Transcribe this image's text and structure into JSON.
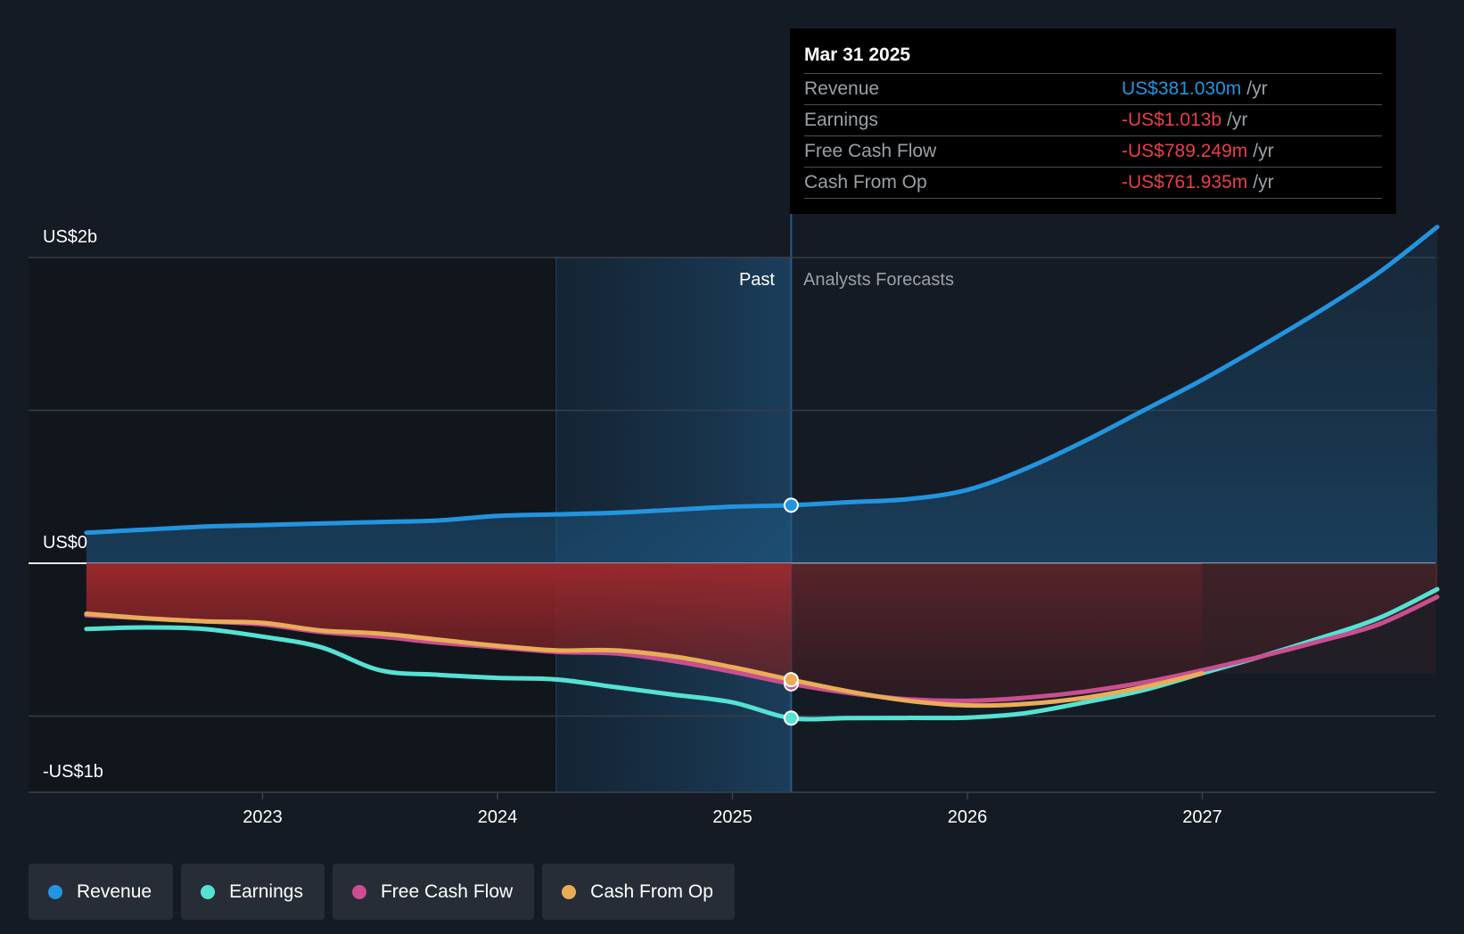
{
  "chart_data": {
    "type": "line",
    "x_ticks": [
      "2023",
      "2024",
      "2025",
      "2026",
      "2027"
    ],
    "y_labels": {
      "top": "US$2b",
      "zero": "US$0",
      "bottom": "-US$1b"
    },
    "ylim": [
      -1.5,
      2.0
    ],
    "region_labels": {
      "past": "Past",
      "forecast": "Analysts Forecasts"
    },
    "past_end": 2025.25,
    "highlight_start": 2024.25,
    "series": [
      {
        "name": "Revenue",
        "color": "#2394df",
        "x": [
          2022.25,
          2022.5,
          2022.75,
          2023.0,
          2023.25,
          2023.5,
          2023.75,
          2024.0,
          2024.25,
          2024.5,
          2024.75,
          2025.0,
          2025.25,
          2025.5,
          2025.75,
          2026.0,
          2026.25,
          2026.5,
          2026.75,
          2027.0,
          2027.25,
          2027.5,
          2027.75,
          2028.0
        ],
        "y": [
          0.2,
          0.22,
          0.24,
          0.25,
          0.26,
          0.27,
          0.28,
          0.31,
          0.32,
          0.33,
          0.35,
          0.37,
          0.38,
          0.4,
          0.42,
          0.48,
          0.62,
          0.8,
          1.0,
          1.2,
          1.42,
          1.65,
          1.9,
          2.2
        ]
      },
      {
        "name": "Earnings",
        "color": "#55e2d3",
        "x": [
          2022.25,
          2022.5,
          2022.75,
          2023.0,
          2023.25,
          2023.5,
          2023.75,
          2024.0,
          2024.25,
          2024.5,
          2024.75,
          2025.0,
          2025.25,
          2025.5,
          2025.75,
          2026.0,
          2026.25,
          2026.5,
          2026.75,
          2027.0,
          2027.25,
          2027.5,
          2027.75,
          2028.0
        ],
        "y": [
          -0.43,
          -0.42,
          -0.43,
          -0.48,
          -0.55,
          -0.7,
          -0.73,
          -0.75,
          -0.76,
          -0.81,
          -0.86,
          -0.91,
          -1.013,
          -1.013,
          -1.012,
          -1.01,
          -0.98,
          -0.91,
          -0.83,
          -0.72,
          -0.61,
          -0.49,
          -0.36,
          -0.17
        ]
      },
      {
        "name": "Free Cash Flow",
        "color": "#c94f8f",
        "x": [
          2022.25,
          2022.5,
          2022.75,
          2023.0,
          2023.25,
          2023.5,
          2023.75,
          2024.0,
          2024.25,
          2024.5,
          2024.75,
          2025.0,
          2025.25,
          2025.5,
          2025.75,
          2026.0,
          2026.25,
          2026.5,
          2026.75,
          2027.0,
          2027.25,
          2027.5,
          2027.75,
          2028.0
        ],
        "y": [
          -0.34,
          -0.36,
          -0.38,
          -0.4,
          -0.45,
          -0.48,
          -0.52,
          -0.55,
          -0.58,
          -0.59,
          -0.64,
          -0.71,
          -0.789,
          -0.85,
          -0.89,
          -0.9,
          -0.88,
          -0.84,
          -0.78,
          -0.7,
          -0.61,
          -0.51,
          -0.4,
          -0.22
        ]
      },
      {
        "name": "Cash From Op",
        "color": "#e9ad58",
        "x": [
          2022.25,
          2022.5,
          2022.75,
          2023.0,
          2023.25,
          2023.5,
          2023.75,
          2024.0,
          2024.25,
          2024.5,
          2024.75,
          2025.0,
          2025.25,
          2025.5,
          2025.75,
          2026.0,
          2026.25,
          2026.5,
          2026.75,
          2027.0
        ],
        "y": [
          -0.33,
          -0.36,
          -0.38,
          -0.39,
          -0.44,
          -0.46,
          -0.5,
          -0.54,
          -0.57,
          -0.57,
          -0.61,
          -0.68,
          -0.762,
          -0.84,
          -0.9,
          -0.93,
          -0.92,
          -0.88,
          -0.81,
          -0.72
        ]
      }
    ]
  },
  "tooltip": {
    "date": "Mar 31 2025",
    "rows": [
      {
        "name": "Revenue",
        "value": "US$381.030m",
        "unit": "/yr",
        "color": "#2394df"
      },
      {
        "name": "Earnings",
        "value": "-US$1.013b",
        "unit": "/yr",
        "color": "#e84045"
      },
      {
        "name": "Free Cash Flow",
        "value": "-US$789.249m",
        "unit": "/yr",
        "color": "#e84045"
      },
      {
        "name": "Cash From Op",
        "value": "-US$761.935m",
        "unit": "/yr",
        "color": "#e84045"
      }
    ]
  },
  "legend": [
    {
      "label": "Revenue",
      "color": "#2394df"
    },
    {
      "label": "Earnings",
      "color": "#55e2d3"
    },
    {
      "label": "Free Cash Flow",
      "color": "#c94f8f"
    },
    {
      "label": "Cash From Op",
      "color": "#e9ad58"
    }
  ]
}
